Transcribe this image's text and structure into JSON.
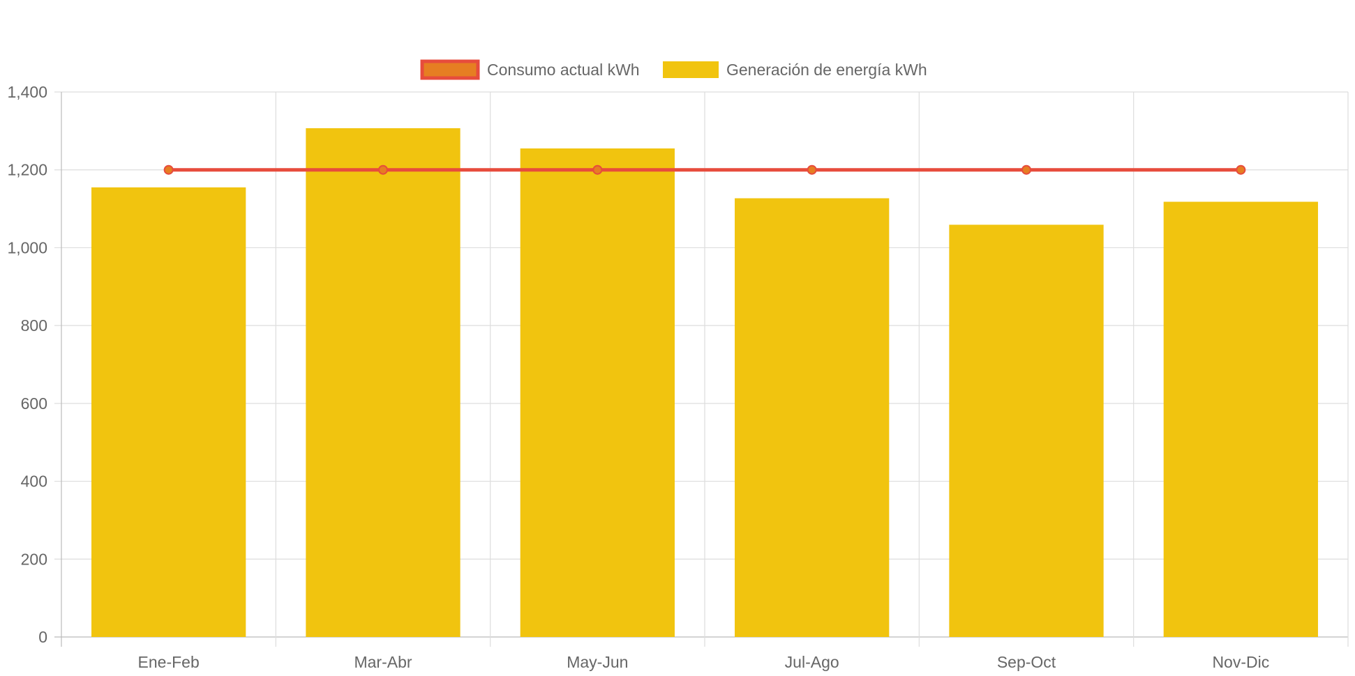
{
  "chart_data": {
    "type": "bar",
    "categories": [
      "Ene-Feb",
      "Mar-Abr",
      "May-Jun",
      "Jul-Ago",
      "Sep-Oct",
      "Nov-Dic"
    ],
    "series": [
      {
        "name": "Consumo actual kWh",
        "type": "line",
        "values": [
          1200,
          1200,
          1200,
          1200,
          1200,
          1200
        ],
        "color": "#e74c3c",
        "point_color": "#e67e22"
      },
      {
        "name": "Generación de energía kWh",
        "type": "bar",
        "values": [
          1155,
          1307,
          1255,
          1127,
          1059,
          1118
        ],
        "color": "#f1c40f"
      }
    ],
    "yticks": [
      "0",
      "200",
      "400",
      "600",
      "800",
      "1,000",
      "1,200",
      "1,400"
    ],
    "ylim": [
      0,
      1400
    ],
    "grid": true,
    "legend_position": "top-center"
  }
}
